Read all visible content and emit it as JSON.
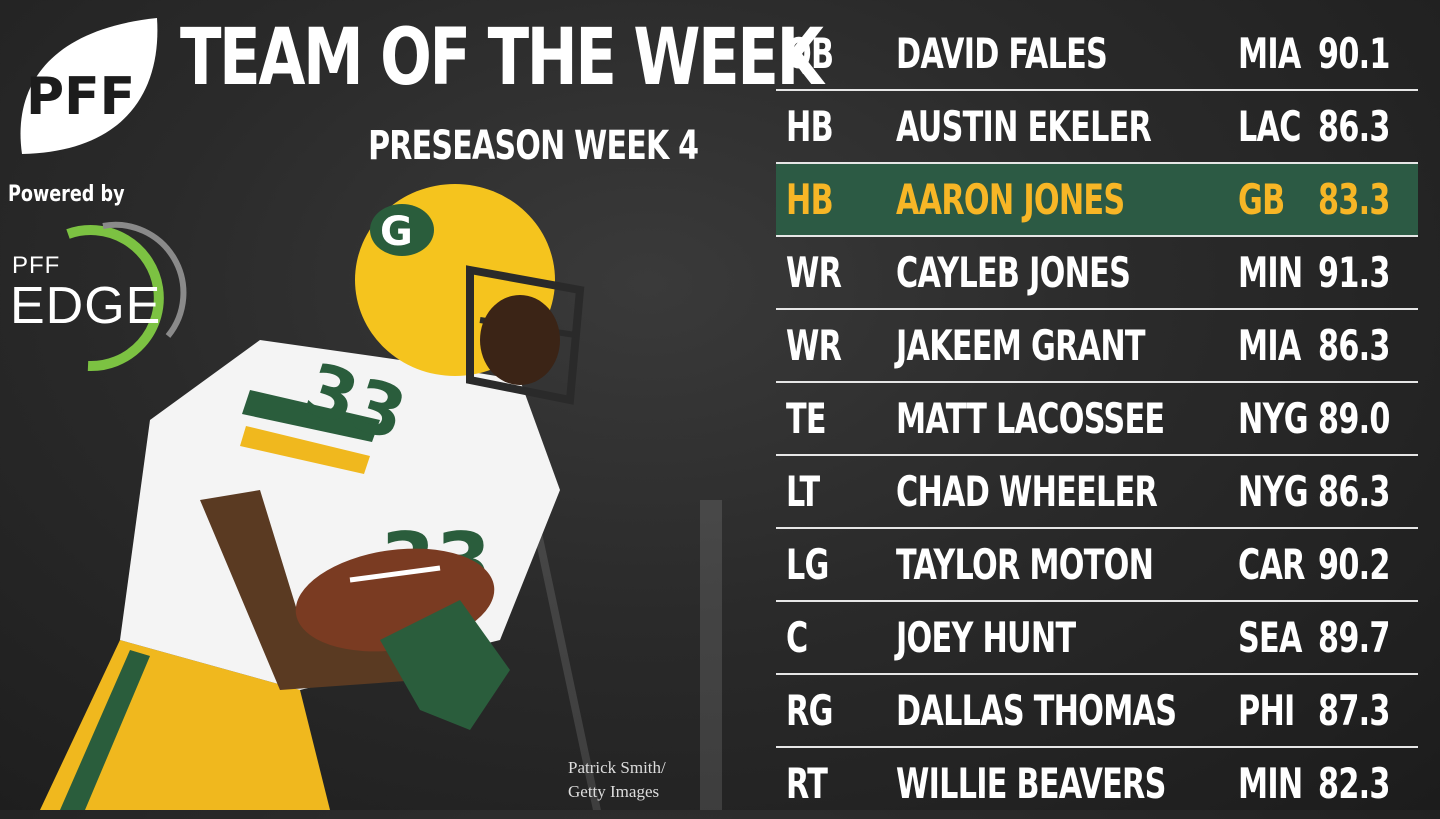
{
  "header": {
    "title": "TEAM OF THE WEEK",
    "subtitle": "PRESEASON WEEK 4",
    "brand_logo_text": "PFF"
  },
  "sponsor": {
    "powered_by": "Powered by",
    "logo_top": "PFF",
    "logo_bottom": "EDGE"
  },
  "photo_credit": {
    "line1": "Patrick Smith/",
    "line2": "Getty Images"
  },
  "colors": {
    "highlight_bg": "#2c5a44",
    "highlight_text": "#f7b626",
    "edge_ring": "#7cc242"
  },
  "roster": [
    {
      "pos": "QB",
      "name": "DAVID FALES",
      "team": "MIA",
      "grade": "90.1"
    },
    {
      "pos": "HB",
      "name": "AUSTIN EKELER",
      "team": "LAC",
      "grade": "86.3"
    },
    {
      "pos": "HB",
      "name": "AARON JONES",
      "team": "GB",
      "grade": "83.3"
    },
    {
      "pos": "WR",
      "name": "CAYLEB JONES",
      "team": "MIN",
      "grade": "91.3"
    },
    {
      "pos": "WR",
      "name": "JAKEEM GRANT",
      "team": "MIA",
      "grade": "86.3"
    },
    {
      "pos": "TE",
      "name": "MATT LACOSSEE",
      "team": "NYG",
      "grade": "89.0"
    },
    {
      "pos": "LT",
      "name": "CHAD WHEELER",
      "team": "NYG",
      "grade": "86.3"
    },
    {
      "pos": "LG",
      "name": "TAYLOR MOTON",
      "team": "CAR",
      "grade": "90.2"
    },
    {
      "pos": "C",
      "name": "JOEY HUNT",
      "team": "SEA",
      "grade": "89.7"
    },
    {
      "pos": "RG",
      "name": "DALLAS THOMAS",
      "team": "PHI",
      "grade": "87.3"
    },
    {
      "pos": "RT",
      "name": "WILLIE BEAVERS",
      "team": "MIN",
      "grade": "82.3"
    }
  ]
}
